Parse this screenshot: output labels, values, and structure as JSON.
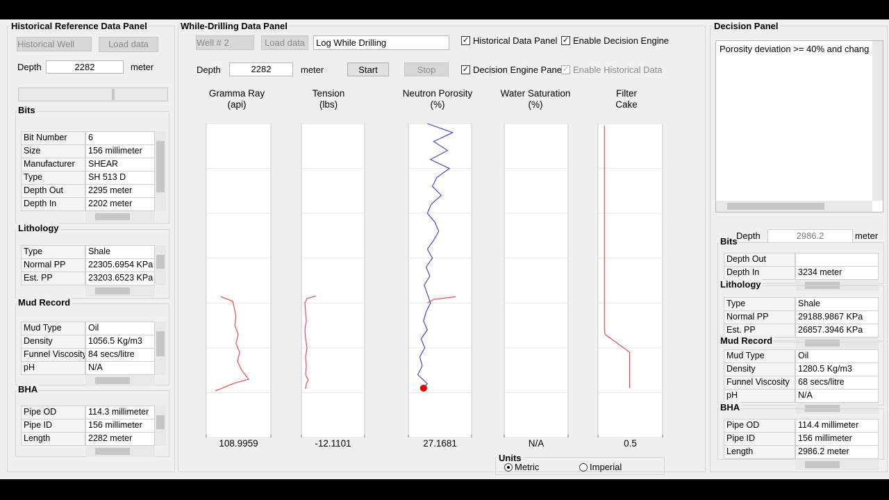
{
  "historical": {
    "title": "Historical Reference Data Panel",
    "well_select": "Historical Well",
    "load_button": "Load data",
    "depth_label": "Depth",
    "depth_value": "2282",
    "depth_unit": "meter",
    "groups": [
      {
        "title": "Bits",
        "rows": [
          [
            "Bit Number",
            "6"
          ],
          [
            "Size",
            "156 millimeter"
          ],
          [
            "Manufacturer",
            "SHEAR"
          ],
          [
            "Type",
            "SH 513 D"
          ],
          [
            "Depth Out",
            "2295 meter"
          ],
          [
            "Depth In",
            "2202 meter"
          ]
        ]
      },
      {
        "title": "Lithology",
        "rows": [
          [
            "Type",
            "Shale"
          ],
          [
            "Normal PP",
            "22305.6954 KPa"
          ],
          [
            "Est. PP",
            "23203.6523 KPa"
          ]
        ]
      },
      {
        "title": "Mud Record",
        "rows": [
          [
            "Mud Type",
            "Oil"
          ],
          [
            "Density",
            "1056.5 Kg/m3"
          ],
          [
            "Funnel Viscosity",
            "84 secs/litre"
          ],
          [
            "pH",
            "N/A"
          ]
        ]
      },
      {
        "title": "BHA",
        "rows": [
          [
            "Pipe OD",
            "114.3 millimeter"
          ],
          [
            "Pipe ID",
            "156 millimeter"
          ],
          [
            "Length",
            "2282 meter"
          ]
        ]
      }
    ]
  },
  "drilling": {
    "title": "While-Drilling Data Panel",
    "well_select": "Well # 2",
    "load_button": "Load data",
    "mode_select": "Log While Drilling",
    "checkboxes": [
      {
        "label": "Historical Data Panel",
        "checked": true,
        "enabled": true
      },
      {
        "label": "Enable Decision Engine",
        "checked": true,
        "enabled": true
      },
      {
        "label": "Decision Engine Panel",
        "checked": true,
        "enabled": true
      },
      {
        "label": "Enable Historical Data",
        "checked": true,
        "enabled": false
      }
    ],
    "depth_label": "Depth",
    "depth_value": "2282",
    "depth_unit": "meter",
    "start_button": "Start",
    "stop_button": "Stop",
    "depth_axis": {
      "ylim": [
        0,
        3500
      ],
      "yticks": [
        0,
        500,
        1000,
        1500,
        2000,
        2500,
        3000,
        3500
      ]
    },
    "tracks": [
      {
        "title": [
          "Gramma Ray",
          "(api)"
        ],
        "xlim": [
          -11,
          256
        ],
        "xticks": [
          -11,
          256
        ],
        "readout": "108.9959",
        "series": [
          {
            "color": "#e0413a",
            "depth": [
              1930,
              1980,
              2050,
              2150,
              2250,
              2350,
              2450,
              2550,
              2650,
              2750,
              2850,
              2900,
              2950,
              2980
            ],
            "values": [
              49,
              98,
              104,
              112,
              107,
              121,
              112,
              127,
              118,
              135,
              164,
              98,
              55,
              26
            ]
          }
        ]
      },
      {
        "title": [
          "Tension",
          "(lbs)"
        ],
        "xlim": [
          -116,
          937
        ],
        "xticks": [
          -116,
          937
        ],
        "readout": "-12.1101",
        "series": [
          {
            "color": "#e0413a",
            "depth": [
              1920,
              1950,
              2000,
              2100,
              2200,
              2300,
              2400,
              2500,
              2600,
              2700,
              2800,
              2860,
              2900,
              2960
            ],
            "values": [
              127,
              -23,
              -58,
              -46,
              -35,
              -58,
              -46,
              -23,
              -46,
              -35,
              -46,
              0,
              -35,
              -46
            ]
          }
        ]
      },
      {
        "title": [
          "Neutron Porosity",
          "(%)"
        ],
        "xlim": [
          0,
          100
        ],
        "xticks": [
          0,
          100
        ],
        "readout": "27.1681",
        "series": [
          {
            "color": "#3a3acc",
            "depth": [
              0,
              100,
              200,
              300,
              400,
              500,
              600,
              700,
              800,
              900,
              1000,
              1100,
              1200,
              1300,
              1400,
              1500,
              1600,
              1700,
              1800,
              1900,
              2000,
              2100,
              2200,
              2300,
              2400,
              2500,
              2600,
              2700,
              2800,
              2900,
              2950
            ],
            "values": [
              30,
              70,
              40,
              62,
              35,
              65,
              45,
              38,
              52,
              36,
              30,
              42,
              48,
              40,
              30,
              38,
              28,
              34,
              25,
              30,
              35,
              28,
              24,
              30,
              20,
              26,
              18,
              22,
              15,
              30,
              24
            ]
          },
          {
            "color": "#e0413a",
            "depth": [
              1930,
              1960,
              2000
            ],
            "values": [
              75,
              40,
              30
            ]
          }
        ],
        "marker": {
          "color": "#e00000",
          "depth": 2950,
          "value": 24
        }
      },
      {
        "title": [
          "Water Saturation",
          "(%)"
        ],
        "xlim": [
          0,
          100
        ],
        "xticks": [
          0,
          100
        ],
        "readout": "N/A",
        "series": []
      },
      {
        "title": [
          "Filter",
          "Cake"
        ],
        "xlim": [
          0,
          2
        ],
        "xticks": [
          0,
          2
        ],
        "readout": "0.5",
        "series": [
          {
            "color": "#e0413a",
            "depth": [
              20,
              2300,
              2350,
              2550,
              2950
            ],
            "values": [
              0.2,
              0.2,
              0.22,
              0.98,
              0.98
            ]
          }
        ]
      }
    ],
    "units": {
      "title": "Units",
      "options": [
        "Metric",
        "Imperial"
      ],
      "selected": 0
    }
  },
  "decision": {
    "title": "Decision Panel",
    "message": "Porosity deviation >= 40% and chang",
    "depth_label": "Depth",
    "depth_value": "2986.2",
    "depth_unit": "meter",
    "groups": [
      {
        "title": "Bits",
        "rows": [
          [
            "Depth Out"
          ],
          [
            "Depth In",
            "3234 meter"
          ]
        ]
      },
      {
        "title": "Lithology",
        "rows": [
          [
            "Type",
            "Shale"
          ],
          [
            "Normal PP",
            "29188.9867 KPa"
          ],
          [
            "Est. PP",
            "26857.3946 KPa"
          ]
        ]
      },
      {
        "title": "Mud Record",
        "rows": [
          [
            "Mud Type",
            "Oil"
          ],
          [
            "Density",
            "1280.5 Kg/m3"
          ],
          [
            "Funnel Viscosity",
            "68 secs/litre"
          ],
          [
            "pH",
            "N/A"
          ]
        ]
      },
      {
        "title": "BHA",
        "rows": [
          [
            "Pipe OD",
            "114.4 millimeter"
          ],
          [
            "Pipe ID",
            "156 millimeter"
          ],
          [
            "Length",
            "2986.2 meter"
          ]
        ]
      }
    ]
  }
}
